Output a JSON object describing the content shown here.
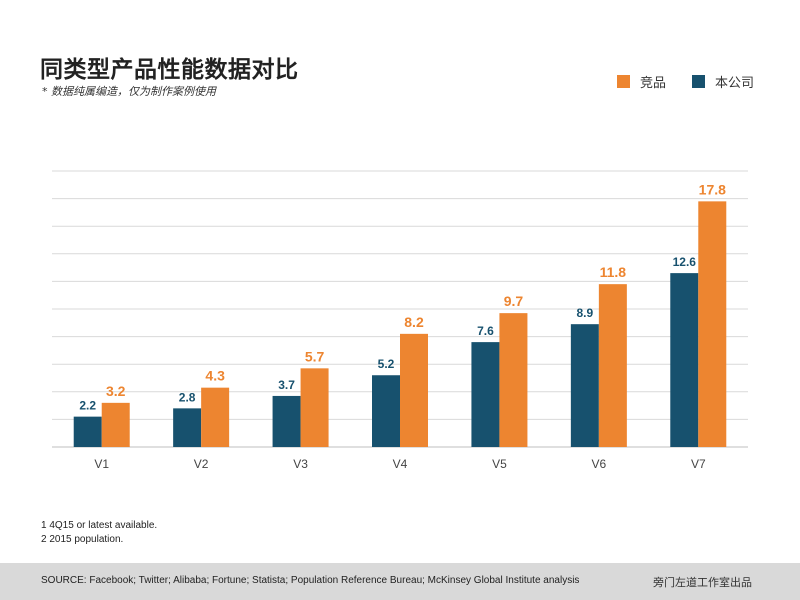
{
  "header": {
    "title": "同类型产品性能数据对比",
    "subtitle": "* 数据纯属编造，仅为制作案例使用"
  },
  "colors": {
    "competitor": "#ED8530",
    "company": "#17516E",
    "grid": "#d9d9d9",
    "axis": "#bfbfbf"
  },
  "chart_data": {
    "type": "bar",
    "categories": [
      "V1",
      "V2",
      "V3",
      "V4",
      "V5",
      "V6",
      "V7"
    ],
    "series": [
      {
        "name": "本公司",
        "values": [
          2.2,
          2.8,
          3.7,
          5.2,
          7.6,
          8.9,
          12.6
        ],
        "color": "#17516E"
      },
      {
        "name": "竞品",
        "values": [
          3.2,
          4.3,
          5.7,
          8.2,
          9.7,
          11.8,
          17.8
        ],
        "color": "#ED8530"
      }
    ],
    "legend": [
      "竞品",
      "本公司"
    ],
    "legend_position": "top-right",
    "ylim": [
      0,
      20
    ],
    "grid": true,
    "data_labels": true
  },
  "footnotes": [
    "1 4Q15 or latest available.",
    "2 2015 population."
  ],
  "footer": {
    "source": "SOURCE: Facebook; Twitter; Alibaba; Fortune; Statista; Population Reference Bureau; McKinsey Global Institute analysis",
    "credit": "旁门左道工作室出品"
  }
}
